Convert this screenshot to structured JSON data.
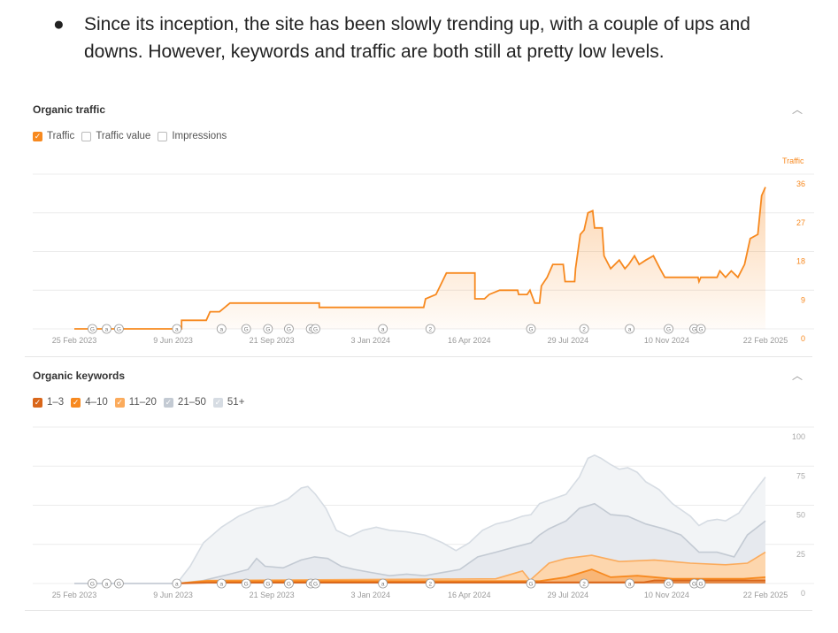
{
  "bullet": {
    "text": "Since its inception, the site has been slowly trending up, with a couple of ups and downs. However, keywords and traffic are both still at pretty low levels."
  },
  "colors": {
    "traffic": "#f7891f",
    "k1_3": "#d9661a",
    "k4_10": "#f7891f",
    "k11_20": "#fbab5c",
    "k21_50": "#c3cad3",
    "k51": "#d6dce3",
    "muted": "#999999"
  },
  "chart_data": [
    {
      "type": "area",
      "title": "Organic traffic",
      "legend": [
        {
          "label": "Traffic",
          "checked": true
        },
        {
          "label": "Traffic value",
          "checked": false
        },
        {
          "label": "Impressions",
          "checked": false
        }
      ],
      "ylabel": "Traffic",
      "ylim": [
        0,
        36
      ],
      "yticks": [
        "0",
        "9",
        "18",
        "27",
        "36"
      ],
      "x_unit": "days since 25 Feb 2023",
      "xticks": [
        {
          "d": 0,
          "label": "25 Feb 2023"
        },
        {
          "d": 104,
          "label": "9 Jun 2023"
        },
        {
          "d": 208,
          "label": "21 Sep 2023"
        },
        {
          "d": 312,
          "label": "3 Jan 2024"
        },
        {
          "d": 416,
          "label": "16 Apr 2024"
        },
        {
          "d": 520,
          "label": "29 Jul 2024"
        },
        {
          "d": 624,
          "label": "10 Nov 2024"
        },
        {
          "d": 728,
          "label": "22 Feb 2025"
        }
      ],
      "series": [
        {
          "name": "Traffic",
          "points": [
            [
              0,
              0
            ],
            [
              113,
              0
            ],
            [
              113,
              2
            ],
            [
              139,
              2
            ],
            [
              143,
              4
            ],
            [
              153,
              4
            ],
            [
              164,
              6
            ],
            [
              258,
              6
            ],
            [
              258,
              5
            ],
            [
              368,
              5
            ],
            [
              370,
              7
            ],
            [
              381,
              8
            ],
            [
              392,
              13
            ],
            [
              422,
              13
            ],
            [
              422,
              7
            ],
            [
              432,
              7
            ],
            [
              437,
              8
            ],
            [
              448,
              9
            ],
            [
              467,
              9
            ],
            [
              468,
              8
            ],
            [
              477,
              8
            ],
            [
              480,
              9
            ],
            [
              485,
              6
            ],
            [
              490,
              6
            ],
            [
              492,
              10
            ],
            [
              498,
              12
            ],
            [
              504,
              15
            ],
            [
              515,
              15
            ],
            [
              517,
              11
            ],
            [
              527,
              11
            ],
            [
              528,
              14
            ],
            [
              533,
              22
            ],
            [
              537,
              23
            ],
            [
              541,
              27
            ],
            [
              546,
              27.5
            ],
            [
              548,
              23.5
            ],
            [
              556,
              23.5
            ],
            [
              558,
              17
            ],
            [
              565,
              14
            ],
            [
              574,
              16
            ],
            [
              580,
              14
            ],
            [
              584,
              15
            ],
            [
              590,
              17
            ],
            [
              595,
              15
            ],
            [
              602,
              16
            ],
            [
              610,
              17
            ],
            [
              617,
              14
            ],
            [
              622,
              12
            ],
            [
              657,
              12
            ],
            [
              658,
              11
            ],
            [
              660,
              12
            ],
            [
              677,
              12
            ],
            [
              680,
              13.5
            ],
            [
              686,
              12
            ],
            [
              692,
              13.5
            ],
            [
              699,
              12
            ],
            [
              706,
              15
            ],
            [
              712,
              21
            ],
            [
              720,
              22
            ],
            [
              724,
              31
            ],
            [
              728,
              33
            ]
          ]
        }
      ],
      "annotations": [
        [
          19,
          "G"
        ],
        [
          34,
          "a"
        ],
        [
          47,
          "G"
        ],
        [
          108,
          "a"
        ],
        [
          155,
          "a"
        ],
        [
          181,
          "G"
        ],
        [
          204,
          "G"
        ],
        [
          226,
          "G"
        ],
        [
          249,
          "C"
        ],
        [
          254,
          "G"
        ],
        [
          325,
          "a"
        ],
        [
          375,
          "2"
        ],
        [
          481,
          "G"
        ],
        [
          537,
          "2"
        ],
        [
          585,
          "a"
        ],
        [
          626,
          "G"
        ],
        [
          653,
          "G"
        ],
        [
          660,
          "G"
        ]
      ]
    },
    {
      "type": "area",
      "title": "Organic keywords",
      "legend": [
        {
          "label": "1–3",
          "checked": true
        },
        {
          "label": "4–10",
          "checked": true
        },
        {
          "label": "11–20",
          "checked": true
        },
        {
          "label": "21–50",
          "checked": true
        },
        {
          "label": "51+",
          "checked": true
        }
      ],
      "ylim": [
        0,
        100
      ],
      "yticks": [
        "0",
        "25",
        "50",
        "75",
        "100"
      ],
      "x_unit": "days since 25 Feb 2023",
      "xticks": [
        {
          "d": 0,
          "label": "25 Feb 2023"
        },
        {
          "d": 104,
          "label": "9 Jun 2023"
        },
        {
          "d": 208,
          "label": "21 Sep 2023"
        },
        {
          "d": 312,
          "label": "3 Jan 2024"
        },
        {
          "d": 416,
          "label": "16 Apr 2024"
        },
        {
          "d": 520,
          "label": "29 Jul 2024"
        },
        {
          "d": 624,
          "label": "10 Nov 2024"
        },
        {
          "d": 728,
          "label": "22 Feb 2025"
        }
      ],
      "series": [
        {
          "name": "51+",
          "points": [
            [
              0,
              0
            ],
            [
              108,
              0
            ],
            [
              122,
              11
            ],
            [
              136,
              26
            ],
            [
              155,
              36
            ],
            [
              173,
              43
            ],
            [
              192,
              48
            ],
            [
              210,
              50
            ],
            [
              225,
              54
            ],
            [
              239,
              61
            ],
            [
              246,
              62
            ],
            [
              254,
              57
            ],
            [
              265,
              48
            ],
            [
              276,
              34
            ],
            [
              290,
              30
            ],
            [
              304,
              34
            ],
            [
              318,
              36
            ],
            [
              332,
              34
            ],
            [
              350,
              33
            ],
            [
              369,
              31
            ],
            [
              388,
              26
            ],
            [
              402,
              21
            ],
            [
              416,
              26
            ],
            [
              430,
              34
            ],
            [
              444,
              38
            ],
            [
              458,
              40
            ],
            [
              472,
              43
            ],
            [
              481,
              44
            ],
            [
              490,
              51
            ],
            [
              504,
              54
            ],
            [
              518,
              57
            ],
            [
              532,
              68
            ],
            [
              541,
              80
            ],
            [
              548,
              82
            ],
            [
              555,
              80
            ],
            [
              565,
              76
            ],
            [
              574,
              73
            ],
            [
              583,
              74
            ],
            [
              593,
              71
            ],
            [
              602,
              65
            ],
            [
              616,
              60
            ],
            [
              630,
              51
            ],
            [
              649,
              43
            ],
            [
              658,
              37
            ],
            [
              667,
              40
            ],
            [
              677,
              41
            ],
            [
              686,
              40
            ],
            [
              700,
              45
            ],
            [
              714,
              57
            ],
            [
              728,
              68
            ]
          ]
        },
        {
          "name": "21–50",
          "points": [
            [
              0,
              0
            ],
            [
              108,
              0
            ],
            [
              136,
              2
            ],
            [
              164,
              6
            ],
            [
              183,
              9
            ],
            [
              192,
              16
            ],
            [
              201,
              11
            ],
            [
              220,
              10
            ],
            [
              239,
              15
            ],
            [
              253,
              17
            ],
            [
              267,
              16
            ],
            [
              281,
              11
            ],
            [
              295,
              9
            ],
            [
              313,
              7
            ],
            [
              332,
              5
            ],
            [
              350,
              6
            ],
            [
              369,
              5
            ],
            [
              388,
              7
            ],
            [
              406,
              9
            ],
            [
              425,
              17
            ],
            [
              444,
              20
            ],
            [
              462,
              23
            ],
            [
              481,
              26
            ],
            [
              490,
              31
            ],
            [
              500,
              35
            ],
            [
              518,
              40
            ],
            [
              532,
              48
            ],
            [
              548,
              51
            ],
            [
              565,
              44
            ],
            [
              583,
              43
            ],
            [
              602,
              38
            ],
            [
              621,
              35
            ],
            [
              639,
              31
            ],
            [
              658,
              20
            ],
            [
              677,
              20
            ],
            [
              695,
              17
            ],
            [
              709,
              31
            ],
            [
              728,
              40
            ]
          ]
        },
        {
          "name": "11–20",
          "points": [
            [
              108,
              0
            ],
            [
              140,
              2
            ],
            [
              480,
              2
            ],
            [
              444,
              3
            ],
            [
              472,
              8
            ],
            [
              500,
              13
            ],
            [
              518,
              16
            ],
            [
              545,
              18
            ],
            [
              574,
              14
            ],
            [
              611,
              15
            ],
            [
              649,
              13
            ],
            [
              686,
              12
            ],
            [
              709,
              13
            ],
            [
              728,
              20
            ]
          ]
        },
        {
          "name": "4–10",
          "points": [
            [
              108,
              0
            ],
            [
              140,
              1.5
            ],
            [
              490,
              1.5
            ],
            [
              518,
              4
            ],
            [
              545,
              9
            ],
            [
              565,
              4
            ],
            [
              593,
              5
            ],
            [
              630,
              3
            ],
            [
              705,
              3
            ],
            [
              728,
              4
            ]
          ]
        },
        {
          "name": "1–3",
          "points": [
            [
              108,
              0
            ],
            [
              140,
              0.5
            ],
            [
              600,
              0.8
            ],
            [
              611,
              2
            ],
            [
              728,
              2
            ]
          ]
        }
      ],
      "annotations": [
        [
          19,
          "G"
        ],
        [
          34,
          "a"
        ],
        [
          47,
          "G"
        ],
        [
          108,
          "a"
        ],
        [
          155,
          "a"
        ],
        [
          181,
          "G"
        ],
        [
          204,
          "G"
        ],
        [
          226,
          "G"
        ],
        [
          249,
          "C"
        ],
        [
          254,
          "G"
        ],
        [
          325,
          "a"
        ],
        [
          375,
          "2"
        ],
        [
          481,
          "G"
        ],
        [
          537,
          "2"
        ],
        [
          585,
          "a"
        ],
        [
          626,
          "G"
        ],
        [
          653,
          "G"
        ],
        [
          660,
          "G"
        ]
      ]
    }
  ]
}
